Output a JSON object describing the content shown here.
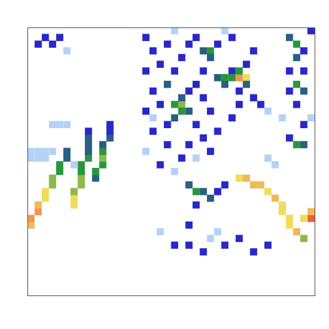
{
  "chart_data": {
    "type": "heatmap",
    "xlim": [
      -0.5,
      39.5
    ],
    "ylim": [
      -0.5,
      39.5
    ],
    "zlim": [
      0,
      10
    ],
    "tick_labels": false,
    "grid": false,
    "cells": [
      [
        0,
        10,
        7
      ],
      [
        0,
        11,
        8
      ],
      [
        1,
        12,
        8
      ],
      [
        1,
        13,
        7
      ],
      [
        2,
        14,
        6
      ],
      [
        2,
        15,
        6
      ],
      [
        3,
        16,
        5
      ],
      [
        3,
        17,
        5
      ],
      [
        4,
        18,
        4
      ],
      [
        4,
        19,
        4
      ],
      [
        5,
        20,
        3
      ],
      [
        5,
        21,
        3
      ],
      [
        6,
        13,
        6
      ],
      [
        6,
        14,
        6
      ],
      [
        6,
        15,
        5
      ],
      [
        7,
        16,
        5
      ],
      [
        7,
        17,
        5
      ],
      [
        7,
        18,
        4
      ],
      [
        7,
        19,
        4
      ],
      [
        8,
        20,
        4
      ],
      [
        8,
        21,
        3
      ],
      [
        8,
        22,
        3
      ],
      [
        8,
        23,
        3
      ],
      [
        8,
        24,
        2
      ],
      [
        9,
        17,
        3
      ],
      [
        9,
        18,
        4
      ],
      [
        10,
        19,
        4
      ],
      [
        10,
        20,
        5
      ],
      [
        10,
        21,
        4
      ],
      [
        10,
        22,
        3
      ],
      [
        11,
        23,
        3
      ],
      [
        11,
        24,
        2
      ],
      [
        11,
        25,
        2
      ],
      [
        0,
        20,
        1
      ],
      [
        1,
        20,
        1
      ],
      [
        2,
        20,
        1
      ],
      [
        3,
        21,
        1
      ],
      [
        0,
        21,
        1
      ],
      [
        1,
        21,
        1
      ],
      [
        2,
        21,
        1
      ],
      [
        4,
        25,
        1
      ],
      [
        5,
        25,
        1
      ],
      [
        3,
        25,
        1
      ],
      [
        6,
        19,
        1
      ],
      [
        1,
        37,
        2
      ],
      [
        2,
        38,
        2
      ],
      [
        3,
        37,
        2
      ],
      [
        4,
        38,
        2
      ],
      [
        5,
        36,
        1
      ],
      [
        29,
        17,
        6
      ],
      [
        30,
        17,
        7
      ],
      [
        31,
        16,
        7
      ],
      [
        32,
        16,
        7
      ],
      [
        33,
        15,
        6
      ],
      [
        34,
        14,
        7
      ],
      [
        35,
        13,
        6
      ],
      [
        35,
        12,
        6
      ],
      [
        36,
        11,
        6
      ],
      [
        36,
        10,
        6
      ],
      [
        37,
        9,
        7
      ],
      [
        38,
        8,
        5
      ],
      [
        39,
        11,
        9
      ],
      [
        38,
        11,
        6
      ],
      [
        39,
        12,
        7
      ],
      [
        16,
        38,
        2
      ],
      [
        17,
        36,
        2
      ],
      [
        16,
        33,
        2
      ],
      [
        17,
        30,
        2
      ],
      [
        16,
        27,
        2
      ],
      [
        17,
        24,
        2
      ],
      [
        16,
        21,
        1
      ],
      [
        18,
        34,
        2
      ],
      [
        19,
        37,
        2
      ],
      [
        19,
        31,
        3
      ],
      [
        20,
        28,
        4
      ],
      [
        21,
        28,
        5
      ],
      [
        21,
        27,
        4
      ],
      [
        22,
        27,
        3
      ],
      [
        20,
        26,
        3
      ],
      [
        21,
        29,
        3
      ],
      [
        22,
        30,
        2
      ],
      [
        20,
        33,
        2
      ],
      [
        21,
        35,
        2
      ],
      [
        22,
        37,
        2
      ],
      [
        23,
        38,
        2
      ],
      [
        24,
        36,
        3
      ],
      [
        25,
        36,
        4
      ],
      [
        25,
        35,
        3
      ],
      [
        26,
        37,
        2
      ],
      [
        24,
        33,
        2
      ],
      [
        26,
        32,
        3
      ],
      [
        27,
        32,
        4
      ],
      [
        27,
        31,
        3
      ],
      [
        28,
        33,
        2
      ],
      [
        23,
        31,
        2
      ],
      [
        24,
        29,
        2
      ],
      [
        25,
        27,
        2
      ],
      [
        23,
        25,
        2
      ],
      [
        24,
        23,
        2
      ],
      [
        22,
        22,
        2
      ],
      [
        19,
        22,
        2
      ],
      [
        18,
        19,
        2
      ],
      [
        20,
        18,
        1
      ],
      [
        22,
        16,
        3
      ],
      [
        23,
        15,
        4
      ],
      [
        24,
        15,
        3
      ],
      [
        25,
        14,
        3
      ],
      [
        26,
        15,
        2
      ],
      [
        27,
        16,
        2
      ],
      [
        21,
        20,
        2
      ],
      [
        25,
        21,
        2
      ],
      [
        26,
        24,
        2
      ],
      [
        28,
        26,
        2
      ],
      [
        29,
        30,
        2
      ],
      [
        28,
        38,
        2
      ],
      [
        27,
        39,
        1
      ],
      [
        20,
        39,
        1
      ],
      [
        23,
        20,
        1
      ],
      [
        19,
        25,
        2
      ],
      [
        18,
        28,
        2
      ],
      [
        17,
        26,
        1
      ],
      [
        29,
        32,
        8
      ],
      [
        30,
        32,
        6
      ],
      [
        28,
        32,
        4
      ],
      [
        29,
        33,
        4
      ],
      [
        30,
        31,
        3
      ],
      [
        30,
        34,
        2
      ],
      [
        31,
        36,
        2
      ],
      [
        29,
        28,
        2
      ],
      [
        31,
        29,
        2
      ],
      [
        32,
        28,
        2
      ],
      [
        33,
        27,
        1
      ],
      [
        36,
        38,
        3
      ],
      [
        37,
        37,
        4
      ],
      [
        37,
        35,
        3
      ],
      [
        36,
        33,
        2
      ],
      [
        37,
        31,
        4
      ],
      [
        38,
        30,
        3
      ],
      [
        36,
        30,
        2
      ],
      [
        38,
        36,
        2
      ],
      [
        39,
        39,
        2
      ],
      [
        38,
        33,
        2
      ],
      [
        37,
        28,
        2
      ],
      [
        37,
        22,
        4
      ],
      [
        38,
        22,
        3
      ],
      [
        36,
        23,
        2
      ],
      [
        38,
        25,
        2
      ],
      [
        39,
        26,
        1
      ],
      [
        35,
        26,
        1
      ],
      [
        33,
        20,
        1
      ],
      [
        34,
        19,
        1
      ],
      [
        20,
        7,
        2
      ],
      [
        22,
        7,
        2
      ],
      [
        24,
        6,
        2
      ],
      [
        27,
        7,
        2
      ],
      [
        29,
        8,
        2
      ],
      [
        31,
        6,
        2
      ],
      [
        33,
        7,
        2
      ],
      [
        25,
        8,
        1
      ],
      [
        18,
        9,
        1
      ],
      [
        26,
        9,
        1
      ],
      [
        22,
        10,
        2
      ],
      [
        23,
        13,
        2
      ]
    ]
  }
}
